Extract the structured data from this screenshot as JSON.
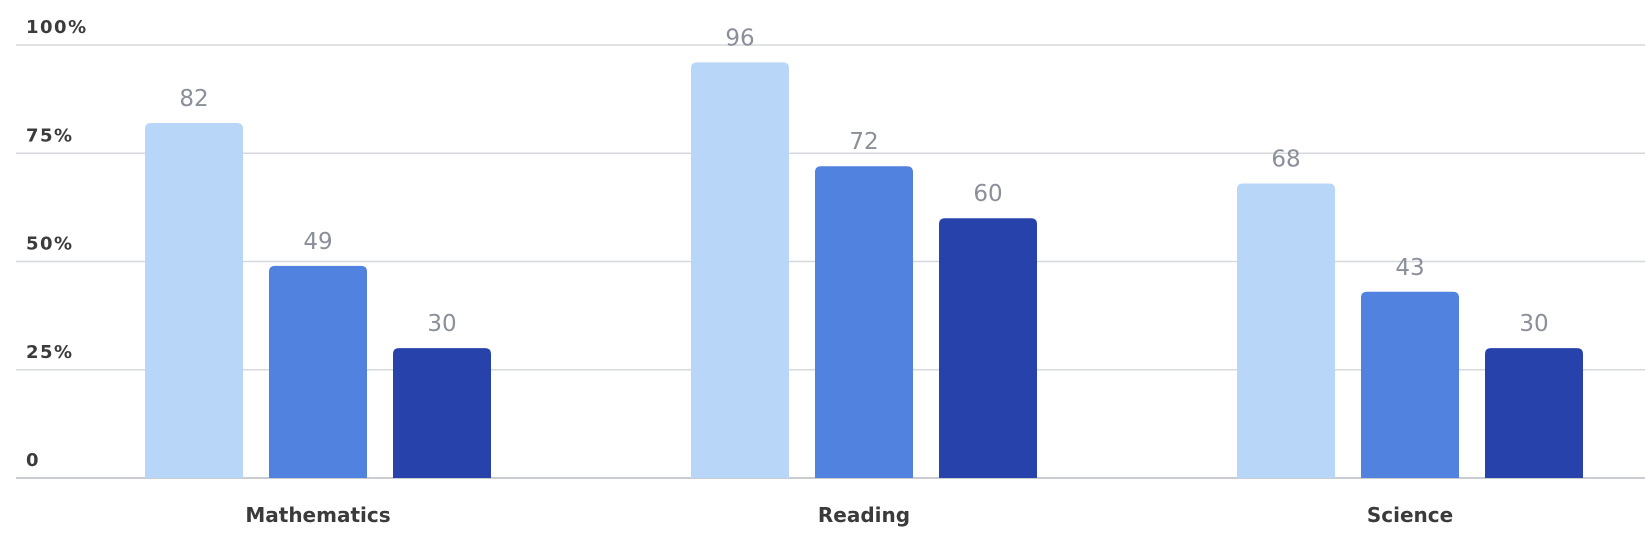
{
  "chart_data": {
    "type": "bar",
    "title": "",
    "xlabel": "",
    "ylabel": "",
    "ylim": [
      0,
      100
    ],
    "y_ticks": [
      {
        "value": 0,
        "label": "0"
      },
      {
        "value": 25,
        "label": "25%"
      },
      {
        "value": 50,
        "label": "50%"
      },
      {
        "value": 75,
        "label": "75%"
      },
      {
        "value": 100,
        "label": "100%"
      }
    ],
    "grid": true,
    "legend": "none",
    "categories": [
      "Mathematics",
      "Reading",
      "Science"
    ],
    "series": [
      {
        "color": "#b8d6f8",
        "values": [
          82,
          96,
          68
        ]
      },
      {
        "color": "#5282e0",
        "values": [
          49,
          72,
          43
        ]
      },
      {
        "color": "#2842ab",
        "values": [
          30,
          60,
          30
        ]
      }
    ]
  }
}
